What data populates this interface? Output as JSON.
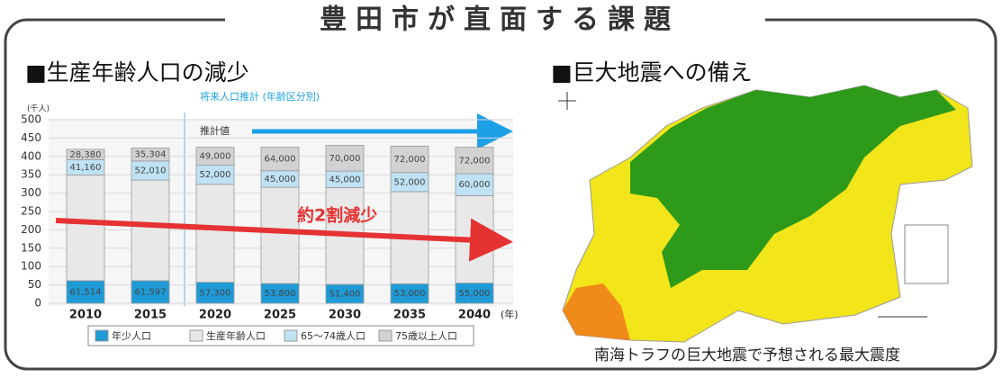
{
  "header": {
    "title": "豊田市が直面する課題"
  },
  "left": {
    "heading": "■生産年齢人口の減少"
  },
  "right": {
    "heading": "■巨大地震への備え",
    "caption": "南海トラフの巨大地震で予想される最大震度"
  },
  "chart_data": {
    "type": "stacked_bar",
    "title": "将来人口推計 (年齢区分別)",
    "y_label": "(千人)",
    "x_label": "(年)",
    "estimate_label": "推計値",
    "annotation": "約2割減少",
    "categories": [
      "2010",
      "2015",
      "2020",
      "2025",
      "2030",
      "2035",
      "2040"
    ],
    "series": [
      {
        "name": "年少人口",
        "color": "#1e9bd7",
        "values": [
          61.514,
          61.597,
          57.3,
          53.8,
          51.4,
          53,
          55
        ],
        "value_labels": [
          "61,514",
          "61,597",
          "57,300",
          "53,800",
          "51,400",
          "53,000",
          "55,000"
        ]
      },
      {
        "name": "生産年齢人口",
        "color": "#e8e8e8",
        "values": [
          288.1,
          274,
          266.7,
          262.2,
          263.6,
          251,
          238
        ]
      },
      {
        "name": "65～74歳人口",
        "color": "#bfe2f4",
        "values": [
          41.16,
          52.01,
          52,
          45,
          45,
          52,
          60
        ],
        "value_labels": [
          "41,160",
          "52,010",
          "52,000",
          "45,000",
          "45,000",
          "52,000",
          "60,000"
        ]
      },
      {
        "name": "75歳以上人口",
        "color": "#d2d2d2",
        "values": [
          28.38,
          35.304,
          49,
          64,
          70,
          72,
          72
        ],
        "value_labels": [
          "28,380",
          "35,304",
          "49,000",
          "64,000",
          "70,000",
          "72,000",
          "72,000"
        ]
      }
    ],
    "ylim": [
      0,
      500
    ],
    "yticks": [
      0,
      50,
      100,
      150,
      200,
      250,
      300,
      350,
      400,
      450,
      500
    ],
    "grid": true
  }
}
